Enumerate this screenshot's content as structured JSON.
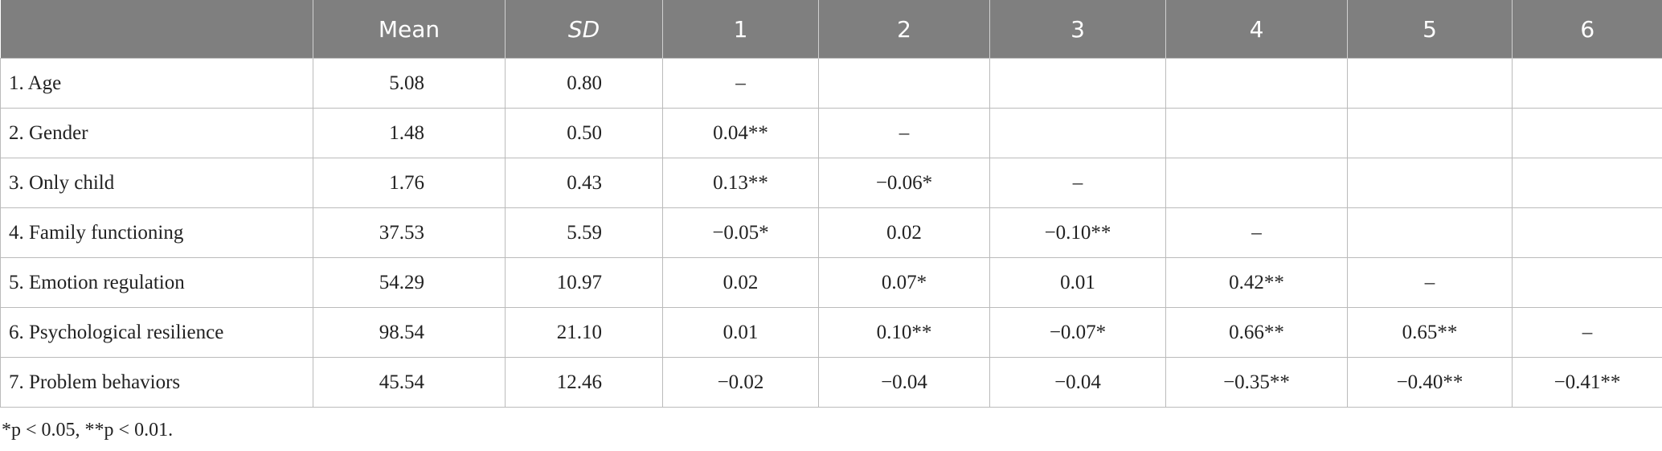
{
  "table": {
    "columns": [
      null,
      "Mean",
      "SD",
      "1",
      "2",
      "3",
      "4",
      "5",
      "6"
    ],
    "rows": [
      [
        "1. Age",
        "5.08",
        "0.80",
        "–",
        null,
        null,
        null,
        null,
        null
      ],
      [
        "2. Gender",
        "1.48",
        "0.50",
        "0.04**",
        "–",
        null,
        null,
        null,
        null
      ],
      [
        "3. Only child",
        "1.76",
        "0.43",
        "0.13**",
        "−0.06*",
        "–",
        null,
        null,
        null
      ],
      [
        "4. Family functioning",
        "37.53",
        "5.59",
        "−0.05*",
        "0.02",
        "−0.10**",
        "–",
        null,
        null
      ],
      [
        "5. Emotion regulation",
        "54.29",
        "10.97",
        "0.02",
        "0.07*",
        "0.01",
        "0.42**",
        "–",
        null
      ],
      [
        "6. Psychological resilience",
        "98.54",
        "21.10",
        "0.01",
        "0.10**",
        "−0.07*",
        "0.66**",
        "0.65**",
        "–"
      ],
      [
        "7. Problem behaviors",
        "45.54",
        "12.46",
        "−0.02",
        "−0.04",
        "−0.04",
        "−0.35**",
        "−0.40**",
        "−0.41**"
      ]
    ]
  },
  "footnote": "*p < 0.05, **p < 0.01."
}
